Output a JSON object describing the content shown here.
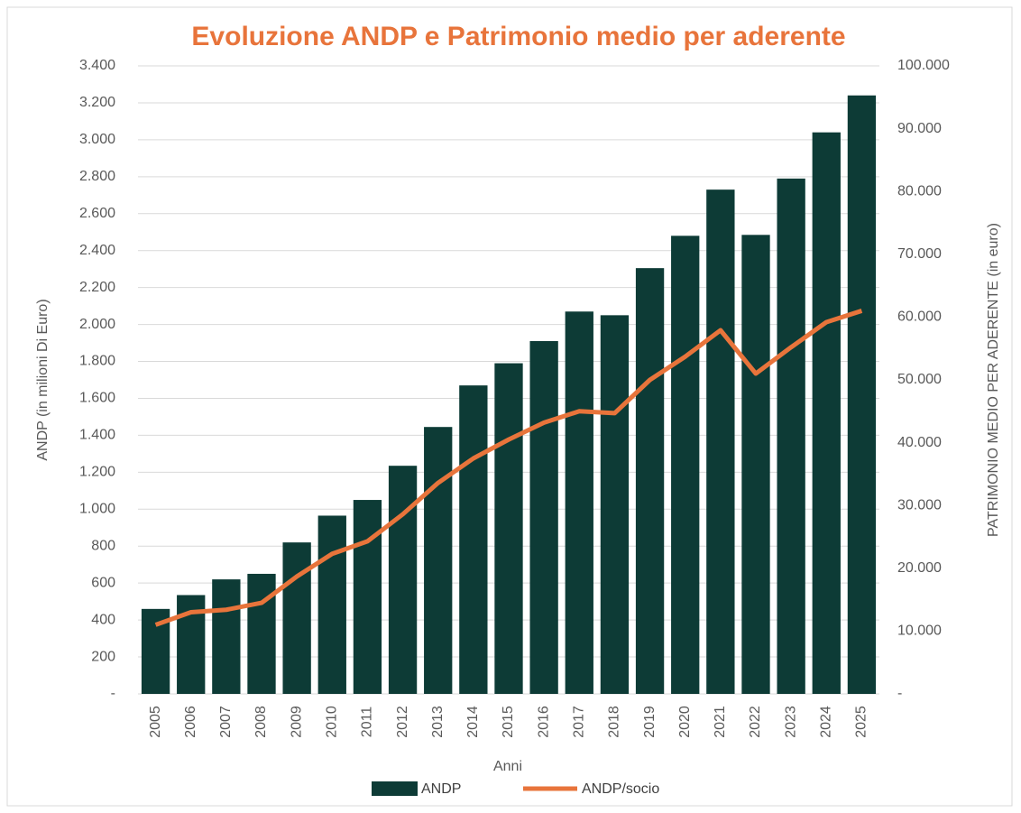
{
  "chart_data": {
    "type": "bar_line",
    "title": "Evoluzione ANDP e Patrimonio medio per aderente",
    "x_label": "Anni",
    "y_label": "ANDP (in milioni Di Euro)",
    "y2_label": "PATRIMONIO MEDIO PER ADERENTE (in euro)",
    "categories": [
      "2005",
      "2006",
      "2007",
      "2008",
      "2009",
      "2010",
      "2011",
      "2012",
      "2013",
      "2014",
      "2015",
      "2016",
      "2017",
      "2018",
      "2019",
      "2020",
      "2021",
      "2022",
      "2023",
      "2024",
      "2025"
    ],
    "series": [
      {
        "name": "ANDP",
        "type": "bar",
        "color": "#0d3b36",
        "values": [
          460,
          535,
          620,
          650,
          820,
          965,
          1050,
          1235,
          1445,
          1670,
          1790,
          1910,
          2070,
          2050,
          2305,
          2480,
          2730,
          2485,
          2790,
          3040,
          3240
        ]
      },
      {
        "name": "ANDP/socio",
        "type": "line",
        "axis": "y2",
        "color": "#e8743b",
        "values": [
          11000,
          13000,
          13400,
          14500,
          18700,
          22300,
          24300,
          28600,
          33600,
          37500,
          40500,
          43200,
          45000,
          44700,
          50000,
          53700,
          57900,
          51000,
          55200,
          59200,
          61000
        ]
      }
    ],
    "ylim": [
      0,
      3400
    ],
    "yticks": [
      {
        "value": 0,
        "label": "-"
      },
      200,
      400,
      600,
      800,
      {
        "value": 1000,
        "label": "1.000"
      },
      {
        "value": 1200,
        "label": "1.200"
      },
      {
        "value": 1400,
        "label": "1.400"
      },
      {
        "value": 1600,
        "label": "1.600"
      },
      {
        "value": 1800,
        "label": "1.800"
      },
      {
        "value": 2000,
        "label": "2.000"
      },
      {
        "value": 2200,
        "label": "2.200"
      },
      {
        "value": 2400,
        "label": "2.400"
      },
      {
        "value": 2600,
        "label": "2.600"
      },
      {
        "value": 2800,
        "label": "2.800"
      },
      {
        "value": 3000,
        "label": "3.000"
      },
      {
        "value": 3200,
        "label": "3.200"
      },
      {
        "value": 3400,
        "label": "3.400"
      }
    ],
    "y2lim": [
      0,
      100000
    ],
    "y2ticks": [
      {
        "value": 0,
        "label": "-"
      },
      {
        "value": 10000,
        "label": "10.000"
      },
      {
        "value": 20000,
        "label": "20.000"
      },
      {
        "value": 30000,
        "label": "30.000"
      },
      {
        "value": 40000,
        "label": "40.000"
      },
      {
        "value": 50000,
        "label": "50.000"
      },
      {
        "value": 60000,
        "label": "60.000"
      },
      {
        "value": 70000,
        "label": "70.000"
      },
      {
        "value": 80000,
        "label": "80.000"
      },
      {
        "value": 90000,
        "label": "90.000"
      },
      {
        "value": 100000,
        "label": "100.000"
      }
    ],
    "grid": true,
    "legend": "bottom"
  }
}
